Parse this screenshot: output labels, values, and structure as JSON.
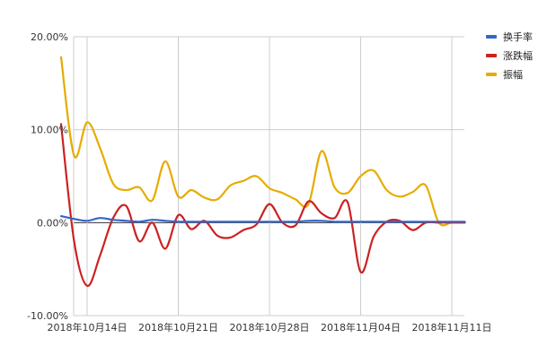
{
  "chart_data": {
    "type": "line",
    "x": [
      "2018-10-12",
      "2018-10-13",
      "2018-10-14",
      "2018-10-15",
      "2018-10-16",
      "2018-10-17",
      "2018-10-18",
      "2018-10-19",
      "2018-10-20",
      "2018-10-21",
      "2018-10-22",
      "2018-10-23",
      "2018-10-24",
      "2018-10-25",
      "2018-10-26",
      "2018-10-27",
      "2018-10-28",
      "2018-10-29",
      "2018-10-30",
      "2018-10-31",
      "2018-11-01",
      "2018-11-02",
      "2018-11-03",
      "2018-11-04",
      "2018-11-05",
      "2018-11-06",
      "2018-11-07",
      "2018-11-08",
      "2018-11-09",
      "2018-11-10",
      "2018-11-11",
      "2018-11-12"
    ],
    "x_ticks": [
      "2018年10月14日",
      "2018年10月21日",
      "2018年10月28日",
      "2018年11月04日",
      "2018年11月11日"
    ],
    "y_ticks": [
      "-10.00%",
      "0.00%",
      "10.00%",
      "20.00%"
    ],
    "ylim": [
      -10,
      20
    ],
    "grid": true,
    "legend_position": "top-right",
    "series": [
      {
        "name": "换手率",
        "color": "#3366cc",
        "values": [
          0.7,
          0.4,
          0.2,
          0.5,
          0.3,
          0.2,
          0.1,
          0.3,
          0.2,
          0.1,
          0.1,
          0.1,
          0.1,
          0.1,
          0.1,
          0.1,
          0.1,
          0.1,
          0.1,
          0.2,
          0.2,
          0.1,
          0.1,
          0.1,
          0.1,
          0.1,
          0.1,
          0.1,
          0.1,
          0.1,
          0.1,
          0.1
        ]
      },
      {
        "name": "涨跌幅",
        "color": "#cc2222",
        "values": [
          10.6,
          -2.0,
          -6.8,
          -3.5,
          0.5,
          1.8,
          -2.0,
          0.0,
          -2.8,
          0.8,
          -0.7,
          0.2,
          -1.4,
          -1.6,
          -0.8,
          -0.2,
          2.0,
          0.0,
          -0.3,
          2.3,
          1.0,
          0.5,
          2.2,
          -5.3,
          -1.5,
          0.1,
          0.2,
          -0.8,
          0,
          0,
          0,
          0
        ]
      },
      {
        "name": "振幅",
        "color": "#e6ac00",
        "values": [
          17.8,
          7.2,
          10.8,
          8.0,
          4.2,
          3.5,
          3.8,
          2.4,
          6.6,
          2.8,
          3.5,
          2.7,
          2.5,
          4.0,
          4.5,
          5.0,
          3.7,
          3.2,
          2.5,
          2.0,
          7.7,
          3.8,
          3.2,
          5.0,
          5.6,
          3.5,
          2.8,
          3.3,
          4.0,
          0,
          0,
          0
        ]
      }
    ]
  }
}
